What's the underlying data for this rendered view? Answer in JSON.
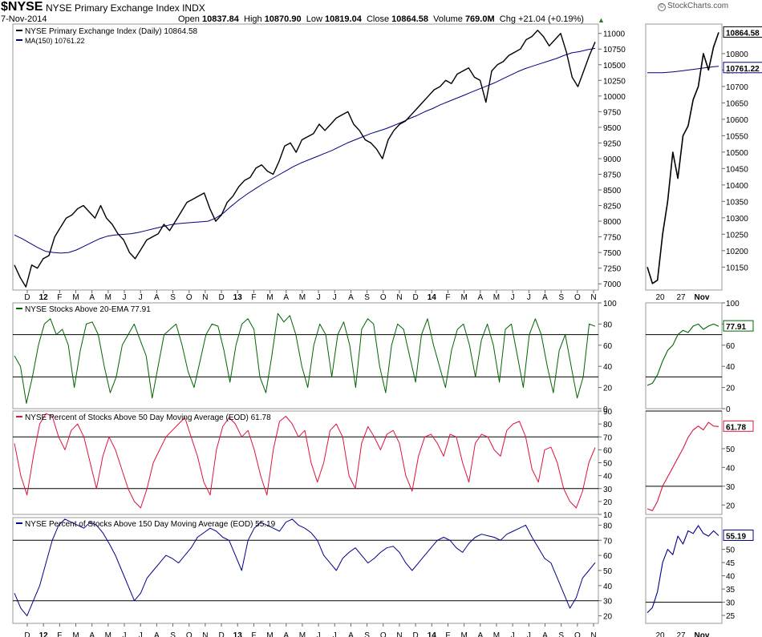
{
  "header": {
    "symbol": "$NYSE",
    "name": "NYSE Primary Exchange Index  INDX",
    "date": "7-Nov-2014",
    "brand": "StockCharts.com",
    "open_label": "Open",
    "open": "10837.84",
    "high_label": "High",
    "high": "10870.90",
    "low_label": "Low",
    "low": "10819.04",
    "close_label": "Close",
    "close": "10864.58",
    "volume_label": "Volume",
    "volume": "769.0M",
    "chg_label": "Chg",
    "chg": "+21.04 (+0.19%)"
  },
  "colors": {
    "price": "#000000",
    "ma": "#000080",
    "ema20": "#006400",
    "ma50": "#dc143c",
    "ma150": "#00008b",
    "grid_line": "#000000",
    "frame": "#999999"
  },
  "chart_data": [
    {
      "type": "line",
      "id": "price",
      "title": "NYSE Primary Exchange Index (Daily) 10864.58",
      "ylim": [
        6900,
        11150
      ],
      "yticks": [
        7000,
        7250,
        7500,
        7750,
        8000,
        8250,
        8500,
        8750,
        9000,
        9250,
        9500,
        9750,
        10000,
        10250,
        10500,
        10750,
        11000
      ],
      "xlabels": [
        "D",
        "12",
        "F",
        "M",
        "A",
        "M",
        "J",
        "J",
        "A",
        "S",
        "O",
        "N",
        "D",
        "13",
        "F",
        "M",
        "A",
        "M",
        "J",
        "J",
        "A",
        "S",
        "O",
        "N",
        "D",
        "14",
        "F",
        "M",
        "A",
        "M",
        "J",
        "J",
        "A",
        "S",
        "O",
        "N"
      ],
      "series": [
        {
          "name": "NYSE Primary Exchange Index (Daily) 10864.58",
          "values": [
            7300,
            7100,
            6950,
            7300,
            7250,
            7400,
            7450,
            7750,
            7900,
            8050,
            8100,
            8200,
            8250,
            8150,
            8050,
            8250,
            8050,
            7950,
            7800,
            7700,
            7500,
            7400,
            7550,
            7700,
            7750,
            7800,
            7950,
            7850,
            8000,
            8150,
            8300,
            8350,
            8400,
            8450,
            8200,
            8000,
            8100,
            8300,
            8400,
            8550,
            8650,
            8700,
            8850,
            8900,
            8800,
            8750,
            8950,
            9200,
            9250,
            9100,
            9300,
            9350,
            9400,
            9550,
            9450,
            9550,
            9650,
            9700,
            9750,
            9550,
            9450,
            9300,
            9250,
            9150,
            9000,
            9300,
            9450,
            9550,
            9600,
            9700,
            9800,
            9900,
            10000,
            10100,
            10150,
            10250,
            10200,
            10350,
            10400,
            10450,
            10300,
            10250,
            9900,
            10400,
            10500,
            10550,
            10650,
            10700,
            10750,
            10900,
            10950,
            11050,
            10950,
            10800,
            10900,
            11000,
            10700,
            10300,
            10150,
            10400,
            10650,
            10864.58
          ]
        },
        {
          "name": "MA(150) 10761.22",
          "values": [
            7780,
            7720,
            7650,
            7580,
            7520,
            7500,
            7490,
            7500,
            7540,
            7600,
            7660,
            7720,
            7760,
            7780,
            7790,
            7800,
            7820,
            7850,
            7880,
            7910,
            7940,
            7960,
            7970,
            7980,
            7990,
            8000,
            8050,
            8130,
            8240,
            8340,
            8430,
            8510,
            8590,
            8660,
            8730,
            8800,
            8870,
            8930,
            8980,
            9030,
            9080,
            9130,
            9190,
            9250,
            9300,
            9350,
            9400,
            9440,
            9480,
            9530,
            9580,
            9640,
            9690,
            9750,
            9800,
            9860,
            9910,
            9960,
            10010,
            10060,
            10110,
            10160,
            10210,
            10270,
            10330,
            10390,
            10440,
            10480,
            10520,
            10560,
            10600,
            10650,
            10690,
            10710,
            10740,
            10761.22
          ]
        }
      ],
      "last_value_label": "10864.58",
      "ma_value_label": "10761.22",
      "zoom": {
        "ylim": [
          10080,
          10890
        ],
        "yticks": [
          10150,
          10200,
          10250,
          10300,
          10350,
          10400,
          10450,
          10500,
          10550,
          10600,
          10650,
          10700,
          10750,
          10800
        ],
        "xlabels": [
          "20",
          "27",
          "Nov"
        ],
        "price": [
          10150,
          10100,
          10110,
          10250,
          10350,
          10500,
          10420,
          10550,
          10580,
          10660,
          10700,
          10800,
          10750,
          10820,
          10864.58
        ],
        "ma": [
          10742,
          10742,
          10742,
          10742,
          10743,
          10744,
          10746,
          10748,
          10750,
          10752,
          10754,
          10756,
          10758,
          10760,
          10761.22
        ]
      }
    },
    {
      "type": "line",
      "id": "ema20",
      "title": "NYSE Stocks Above 20-EMA 77.91",
      "ylim": [
        0,
        100
      ],
      "yticks": [
        0,
        20,
        40,
        60,
        80,
        100
      ],
      "hlines": [
        70,
        30
      ],
      "series": [
        {
          "name": "NYSE Stocks Above 20-EMA 77.91",
          "values": [
            50,
            40,
            5,
            30,
            60,
            80,
            85,
            70,
            75,
            60,
            20,
            55,
            80,
            82,
            70,
            40,
            15,
            30,
            60,
            70,
            80,
            65,
            50,
            10,
            40,
            70,
            75,
            80,
            60,
            35,
            20,
            45,
            70,
            80,
            78,
            55,
            25,
            60,
            80,
            85,
            75,
            30,
            15,
            50,
            90,
            82,
            88,
            70,
            40,
            20,
            60,
            80,
            70,
            30,
            70,
            82,
            60,
            20,
            75,
            85,
            80,
            40,
            15,
            60,
            80,
            75,
            50,
            25,
            70,
            85,
            60,
            40,
            20,
            55,
            75,
            80,
            60,
            30,
            65,
            80,
            60,
            25,
            75,
            80,
            50,
            20,
            70,
            85,
            70,
            40,
            15,
            55,
            70,
            40,
            10,
            30,
            80,
            77.91
          ]
        }
      ],
      "last_value_label": "77.91",
      "zoom": {
        "ylim": [
          0,
          100
        ],
        "yticks": [
          0,
          20,
          40,
          60,
          80,
          100
        ],
        "values": [
          22,
          24,
          32,
          45,
          55,
          60,
          70,
          74,
          72,
          78,
          80,
          75,
          78,
          80,
          77.91
        ]
      }
    },
    {
      "type": "line",
      "id": "ma50",
      "title": "NYSE Percent of Stocks Above 50 Day Moving Average (EOD) 61.78",
      "ylim": [
        10,
        90
      ],
      "yticks": [
        10,
        20,
        30,
        40,
        50,
        60,
        70,
        80,
        90
      ],
      "hlines": [
        70,
        30
      ],
      "series": [
        {
          "name": "NYSE Percent of Stocks Above 50 Day Moving Average (EOD) 61.78",
          "values": [
            65,
            40,
            25,
            55,
            80,
            88,
            86,
            70,
            60,
            75,
            80,
            70,
            50,
            30,
            55,
            70,
            60,
            45,
            30,
            20,
            15,
            30,
            50,
            60,
            70,
            75,
            80,
            85,
            70,
            55,
            35,
            25,
            60,
            78,
            85,
            80,
            70,
            75,
            60,
            40,
            25,
            60,
            82,
            86,
            80,
            70,
            75,
            50,
            35,
            50,
            75,
            80,
            70,
            40,
            30,
            65,
            78,
            70,
            60,
            72,
            75,
            65,
            40,
            28,
            55,
            70,
            72,
            65,
            55,
            72,
            70,
            50,
            35,
            65,
            72,
            70,
            60,
            55,
            75,
            80,
            82,
            70,
            45,
            35,
            60,
            62,
            50,
            30,
            20,
            15,
            28,
            50,
            61.78
          ]
        }
      ],
      "last_value_label": "61.78",
      "zoom": {
        "ylim": [
          15,
          70
        ],
        "yticks": [
          20,
          30,
          40,
          50
        ],
        "values": [
          18,
          17,
          22,
          30,
          35,
          40,
          45,
          50,
          56,
          60,
          62,
          60,
          64,
          62,
          61.78
        ]
      }
    },
    {
      "type": "line",
      "id": "ma150",
      "title": "NYSE Percent of Stocks Above 150 Day Moving Average (EOD) 55.19",
      "ylim": [
        15,
        85
      ],
      "yticks": [
        20,
        30,
        40,
        50,
        60,
        70,
        80
      ],
      "hlines": [
        70,
        30
      ],
      "series": [
        {
          "name": "NYSE Percent of Stocks Above 150 Day Moving Average (EOD) 55.19",
          "values": [
            35,
            25,
            20,
            30,
            40,
            55,
            70,
            80,
            84,
            82,
            80,
            78,
            82,
            80,
            75,
            68,
            60,
            50,
            40,
            30,
            35,
            45,
            50,
            55,
            60,
            58,
            55,
            60,
            65,
            72,
            75,
            78,
            76,
            72,
            70,
            60,
            50,
            70,
            78,
            82,
            80,
            78,
            76,
            82,
            84,
            80,
            78,
            75,
            70,
            60,
            55,
            50,
            58,
            62,
            65,
            60,
            55,
            58,
            62,
            65,
            66,
            62,
            55,
            50,
            55,
            60,
            65,
            70,
            72,
            70,
            65,
            62,
            68,
            72,
            74,
            73,
            72,
            70,
            74,
            76,
            78,
            80,
            72,
            65,
            58,
            55,
            45,
            35,
            25,
            32,
            45,
            50,
            55.19
          ]
        }
      ],
      "last_value_label": "55.19",
      "zoom": {
        "ylim": [
          22,
          62
        ],
        "yticks": [
          25,
          30,
          35,
          40,
          45,
          50
        ],
        "values": [
          26,
          28,
          34,
          45,
          50,
          48,
          55,
          52,
          57,
          56,
          59,
          56,
          55,
          57,
          55.19
        ]
      }
    }
  ]
}
